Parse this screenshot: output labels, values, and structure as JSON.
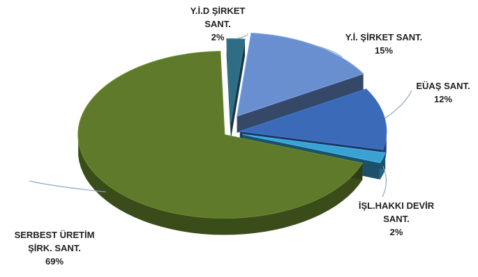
{
  "chart_data": {
    "type": "pie",
    "title": "",
    "style": "3d-exploded",
    "series": [
      {
        "values": [
          2,
          15,
          12,
          2,
          69
        ],
        "slices": [
          {
            "label_lines": [
              "Y.İ.D  ŞİRKET",
              "SANT.",
              "2%"
            ],
            "value": 2,
            "color": "#2f6d85"
          },
          {
            "label_lines": [
              "Y.İ. ŞİRKET SANT.",
              "15%"
            ],
            "value": 15,
            "color": "#6a8fd0"
          },
          {
            "label_lines": [
              "EÜAŞ SANT.",
              "12%"
            ],
            "value": 12,
            "color": "#3a6ab8"
          },
          {
            "label_lines": [
              "İŞL.HAKKI DEVİR",
              "SANT.",
              "2%"
            ],
            "value": 2,
            "color": "#3aa2d2"
          },
          {
            "label_lines": [
              "SERBEST ÜRETİM",
              "ŞİRK. SANT.",
              "69%"
            ],
            "value": 69,
            "color": "#5e7a2a"
          }
        ]
      }
    ],
    "legend": "none",
    "data_labels": "outside-with-leader-lines"
  }
}
